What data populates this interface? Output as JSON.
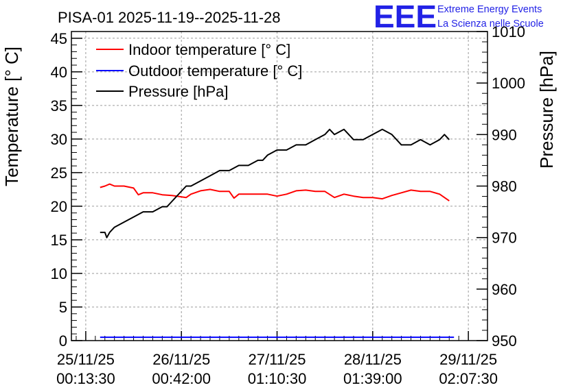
{
  "chart_data": {
    "type": "line",
    "title": "PISA-01 2025-11-19--2025-11-28",
    "ylabel_left": "Temperature [° C]",
    "ylabel_right": "Pressure [hPa]",
    "ylim_left": [
      0,
      46
    ],
    "ylim_right": [
      950,
      1010
    ],
    "left_ticks": [
      0,
      5,
      10,
      15,
      20,
      25,
      30,
      35,
      40,
      45
    ],
    "right_ticks": [
      950,
      960,
      970,
      980,
      990,
      1000,
      1010
    ],
    "x_ticks": [
      {
        "t": -0.5,
        "date": "25/11/25",
        "time": "00:13:30"
      },
      {
        "t": 0.5,
        "date": "26/11/25",
        "time": "00:42:00"
      },
      {
        "t": 1.5,
        "date": "27/11/25",
        "time": "01:10:30"
      },
      {
        "t": 2.5,
        "date": "28/11/25",
        "time": "01:39:00"
      },
      {
        "t": 3.5,
        "date": "29/11/25",
        "time": "02:07:30"
      }
    ],
    "xlim": [
      -0.65,
      3.7
    ],
    "grid": true,
    "legend_position": "top-left",
    "series": [
      {
        "name": "Indoor temperature [° C]",
        "axis": "left",
        "color": "#ff0000",
        "x": [
          -0.35,
          -0.3,
          -0.25,
          -0.2,
          -0.1,
          0.0,
          0.05,
          0.1,
          0.2,
          0.3,
          0.4,
          0.5,
          0.55,
          0.6,
          0.7,
          0.8,
          0.9,
          1.0,
          1.05,
          1.1,
          1.2,
          1.3,
          1.4,
          1.5,
          1.6,
          1.7,
          1.8,
          1.9,
          2.0,
          2.1,
          2.2,
          2.3,
          2.4,
          2.5,
          2.6,
          2.7,
          2.8,
          2.9,
          3.0,
          3.1,
          3.2,
          3.3
        ],
        "values": [
          22.8,
          23.0,
          23.3,
          23.0,
          23.0,
          22.7,
          21.7,
          22.0,
          22.0,
          21.7,
          21.6,
          21.4,
          21.3,
          21.8,
          22.3,
          22.5,
          22.2,
          22.2,
          21.2,
          21.8,
          21.8,
          21.8,
          21.8,
          21.5,
          21.8,
          22.3,
          22.4,
          22.2,
          22.2,
          21.3,
          21.8,
          21.5,
          21.3,
          21.3,
          21.1,
          21.6,
          22.0,
          22.4,
          22.2,
          22.2,
          21.8,
          20.8
        ]
      },
      {
        "name": "Outdoor temperature [° C]",
        "axis": "left",
        "color": "#0000ff",
        "x": [
          -0.35,
          3.35
        ],
        "values": [
          0.5,
          0.5
        ]
      },
      {
        "name": "Pressure [hPa]",
        "axis": "right",
        "color": "#000000",
        "x": [
          -0.35,
          -0.3,
          -0.28,
          -0.25,
          -0.2,
          -0.1,
          0.0,
          0.1,
          0.2,
          0.3,
          0.35,
          0.4,
          0.45,
          0.5,
          0.55,
          0.6,
          0.7,
          0.8,
          0.9,
          1.0,
          1.1,
          1.2,
          1.3,
          1.35,
          1.4,
          1.5,
          1.6,
          1.7,
          1.8,
          1.9,
          2.0,
          2.05,
          2.1,
          2.2,
          2.3,
          2.4,
          2.5,
          2.6,
          2.7,
          2.8,
          2.9,
          3.0,
          3.1,
          3.2,
          3.25,
          3.3
        ],
        "values": [
          971,
          971,
          970,
          971,
          972,
          973,
          974,
          975,
          975,
          976,
          976,
          977,
          978,
          979,
          980,
          980,
          981,
          982,
          983,
          983,
          984,
          984,
          985,
          985,
          986,
          987,
          987,
          988,
          988,
          989,
          990,
          991,
          990,
          991,
          989,
          989,
          990,
          991,
          990,
          988,
          988,
          989,
          988,
          989,
          990,
          989
        ]
      }
    ]
  },
  "logo": {
    "mark": "EEE",
    "line1": "Extreme Energy Events",
    "line2": "La Scienza nelle Scuole"
  }
}
